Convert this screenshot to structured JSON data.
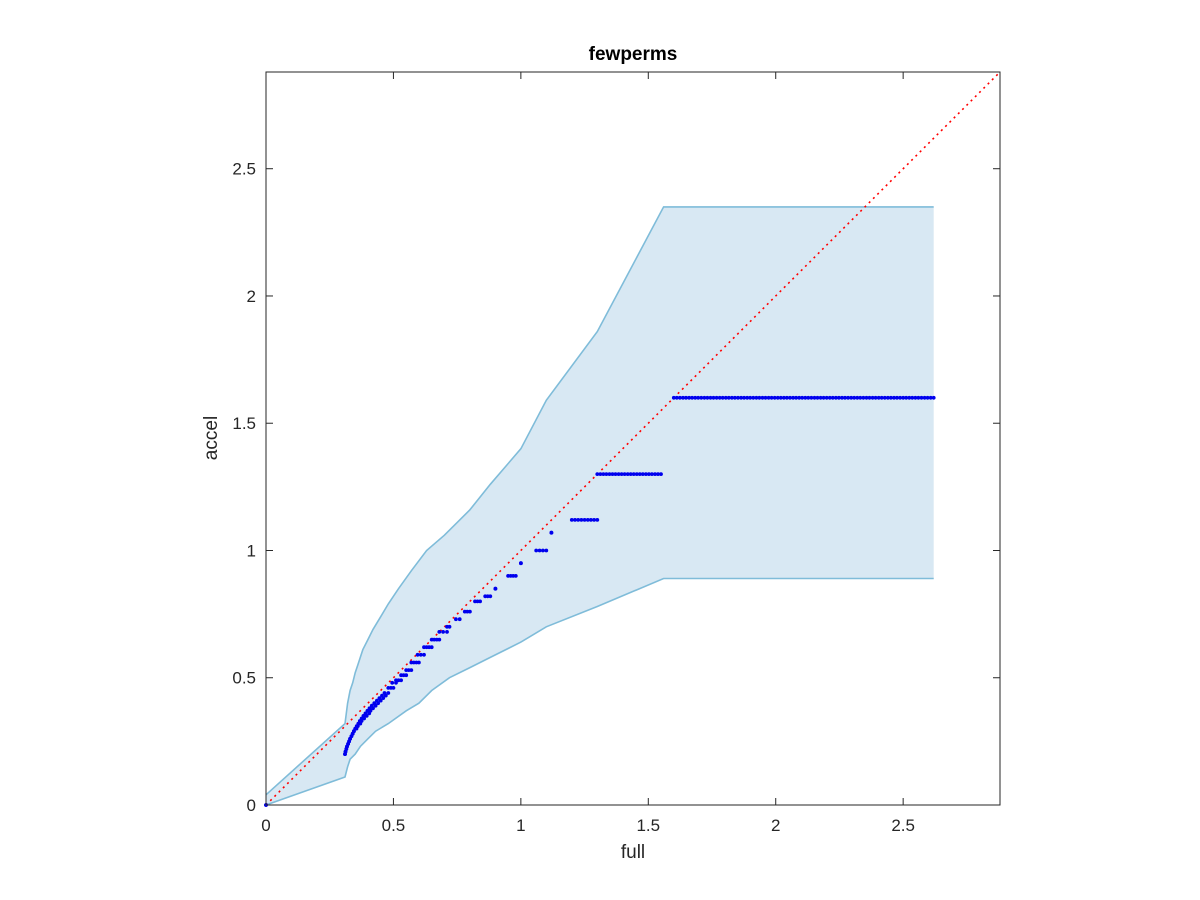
{
  "chart_data": {
    "type": "scatter",
    "title": "fewperms",
    "xlabel": "full",
    "ylabel": "accel",
    "xlim": [
      0,
      2.88
    ],
    "ylim": [
      0,
      2.88
    ],
    "xticks": [
      0,
      0.5,
      1,
      1.5,
      2,
      2.5
    ],
    "xtick_labels": [
      "0",
      "0.5",
      "1",
      "1.5",
      "2",
      "2.5"
    ],
    "yticks": [
      0,
      0.5,
      1,
      1.5,
      2,
      2.5
    ],
    "ytick_labels": [
      "0",
      "0.5",
      "1",
      "1.5",
      "2",
      "2.5"
    ],
    "grid": false,
    "colors": {
      "points": "#0000ee",
      "band_fill": "#d8e8f3",
      "band_edge": "#7fbcd9",
      "reference": "#ff0000"
    },
    "reference_line": {
      "style": "dotted",
      "from": [
        0,
        0
      ],
      "to": [
        2.88,
        2.88
      ]
    },
    "band": {
      "upper": [
        [
          0,
          0.04
        ],
        [
          0.31,
          0.32
        ],
        [
          0.32,
          0.4
        ],
        [
          0.33,
          0.45
        ],
        [
          0.34,
          0.48
        ],
        [
          0.35,
          0.52
        ],
        [
          0.36,
          0.55
        ],
        [
          0.37,
          0.58
        ],
        [
          0.38,
          0.61
        ],
        [
          0.4,
          0.65
        ],
        [
          0.42,
          0.69
        ],
        [
          0.45,
          0.74
        ],
        [
          0.48,
          0.79
        ],
        [
          0.52,
          0.85
        ],
        [
          0.57,
          0.92
        ],
        [
          0.63,
          1.0
        ],
        [
          0.7,
          1.06
        ],
        [
          0.8,
          1.16
        ],
        [
          0.88,
          1.26
        ],
        [
          1.0,
          1.4
        ],
        [
          1.1,
          1.59
        ],
        [
          1.3,
          1.86
        ],
        [
          1.56,
          2.35
        ],
        [
          2.62,
          2.35
        ]
      ],
      "lower": [
        [
          0,
          0
        ],
        [
          0.31,
          0.11
        ],
        [
          0.32,
          0.15
        ],
        [
          0.33,
          0.18
        ],
        [
          0.35,
          0.2
        ],
        [
          0.37,
          0.23
        ],
        [
          0.4,
          0.26
        ],
        [
          0.43,
          0.29
        ],
        [
          0.48,
          0.32
        ],
        [
          0.55,
          0.37
        ],
        [
          0.6,
          0.4
        ],
        [
          0.65,
          0.45
        ],
        [
          0.72,
          0.5
        ],
        [
          0.8,
          0.54
        ],
        [
          0.88,
          0.58
        ],
        [
          1.0,
          0.64
        ],
        [
          1.1,
          0.7
        ],
        [
          1.3,
          0.78
        ],
        [
          1.56,
          0.89
        ],
        [
          2.62,
          0.89
        ]
      ]
    },
    "series": [
      {
        "x": [
          0,
          0.31,
          0.312,
          0.315,
          0.318,
          0.322,
          0.326,
          0.33,
          0.335,
          0.34,
          0.345,
          0.35,
          0.356,
          0.362,
          0.368,
          0.375,
          0.382,
          0.39,
          0.398,
          0.406,
          0.415,
          0.425,
          0.435,
          0.445,
          0.455,
          0.465,
          0.48,
          0.495,
          0.51,
          0.53,
          0.55,
          0.57,
          0.595,
          0.62,
          0.65,
          0.68,
          0.71,
          0.745,
          0.78,
          0.82,
          0.86,
          0.9,
          0.95,
          1.0,
          1.06,
          1.12,
          1.2,
          1.3,
          1.6
        ],
        "y": [
          0,
          0.2,
          0.21,
          0.22,
          0.23,
          0.24,
          0.25,
          0.26,
          0.27,
          0.28,
          0.29,
          0.3,
          0.31,
          0.32,
          0.33,
          0.34,
          0.35,
          0.36,
          0.37,
          0.38,
          0.39,
          0.4,
          0.41,
          0.42,
          0.43,
          0.44,
          0.46,
          0.48,
          0.49,
          0.51,
          0.53,
          0.56,
          0.59,
          0.62,
          0.65,
          0.68,
          0.7,
          0.73,
          0.76,
          0.8,
          0.82,
          0.85,
          0.9,
          0.95,
          1.0,
          1.07,
          1.12,
          1.3,
          1.6
        ],
        "run_end_x": [
          0,
          0.31,
          0.312,
          0.315,
          0.318,
          0.322,
          0.326,
          0.33,
          0.335,
          0.34,
          0.345,
          0.355,
          0.36,
          0.37,
          0.375,
          0.385,
          0.395,
          0.405,
          0.41,
          0.42,
          0.43,
          0.44,
          0.45,
          0.46,
          0.47,
          0.48,
          0.5,
          0.51,
          0.53,
          0.55,
          0.57,
          0.6,
          0.62,
          0.65,
          0.68,
          0.71,
          0.72,
          0.76,
          0.8,
          0.84,
          0.88,
          0.9,
          0.98,
          1.0,
          1.1,
          1.1,
          1.3,
          1.55,
          2.62
        ]
      }
    ]
  }
}
